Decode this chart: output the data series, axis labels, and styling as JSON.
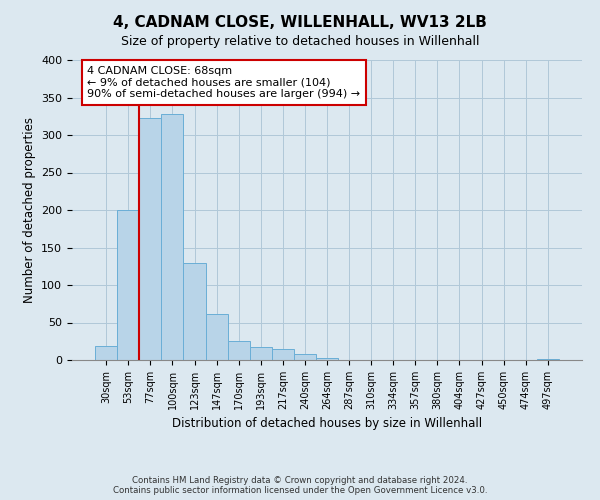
{
  "title": "4, CADNAM CLOSE, WILLENHALL, WV13 2LB",
  "subtitle": "Size of property relative to detached houses in Willenhall",
  "xlabel": "Distribution of detached houses by size in Willenhall",
  "ylabel": "Number of detached properties",
  "bin_labels": [
    "30sqm",
    "53sqm",
    "77sqm",
    "100sqm",
    "123sqm",
    "147sqm",
    "170sqm",
    "193sqm",
    "217sqm",
    "240sqm",
    "264sqm",
    "287sqm",
    "310sqm",
    "334sqm",
    "357sqm",
    "380sqm",
    "404sqm",
    "427sqm",
    "450sqm",
    "474sqm",
    "497sqm"
  ],
  "bar_values": [
    19,
    200,
    323,
    328,
    130,
    62,
    25,
    17,
    15,
    8,
    3,
    0,
    0,
    0,
    0,
    0,
    0,
    0,
    0,
    0,
    2
  ],
  "bar_color": "#b8d4e8",
  "bar_edge_color": "#6aaed6",
  "vline_color": "#cc0000",
  "annotation_box_text": "4 CADNAM CLOSE: 68sqm\n← 9% of detached houses are smaller (104)\n90% of semi-detached houses are larger (994) →",
  "ylim": [
    0,
    400
  ],
  "yticks": [
    0,
    50,
    100,
    150,
    200,
    250,
    300,
    350,
    400
  ],
  "footer_line1": "Contains HM Land Registry data © Crown copyright and database right 2024.",
  "footer_line2": "Contains public sector information licensed under the Open Government Licence v3.0.",
  "bg_color": "#dce8f0",
  "plot_bg_color": "#dce8f0",
  "grid_color": "#b0c8d8"
}
